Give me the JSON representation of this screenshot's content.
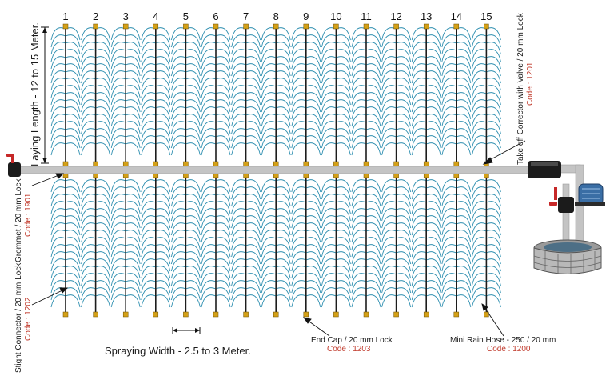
{
  "columns": [
    "1",
    "2",
    "3",
    "4",
    "5",
    "6",
    "7",
    "8",
    "9",
    "10",
    "11",
    "12",
    "13",
    "14",
    "15"
  ],
  "labels": {
    "laying_length": "Laying Length - 12 to 15 Meter.",
    "spraying_width": "Spraying Width - 2.5 to 3 Meter.",
    "take_off": "Take off Corrector with Valve / 20 mm Lock",
    "take_off_code": "Code : 1201",
    "grommet": "Grommet / 20 mm Lock",
    "grommet_code": "Code : 1901",
    "straight_connector": "Stight Connector / 20 mm Lock",
    "straight_connector_code": "Code : 1202",
    "end_cap": "End Cap / 20 mm Lock",
    "end_cap_code": "Code : 1203",
    "mini_rain_hose": "Mini Rain Hose - 250 / 20 mm",
    "mini_rain_hose_code": "Code : 1200"
  },
  "colors": {
    "spray": "#2f8fb0",
    "pipe": "#bdbdbd",
    "fitting": "#d4a017",
    "code": "#c0392b",
    "valve": "#c62828",
    "motor": "#3a6ea5"
  },
  "icons": [
    "water-well-icon",
    "pump-motor-icon",
    "valve-icon",
    "end-cap-icon"
  ]
}
